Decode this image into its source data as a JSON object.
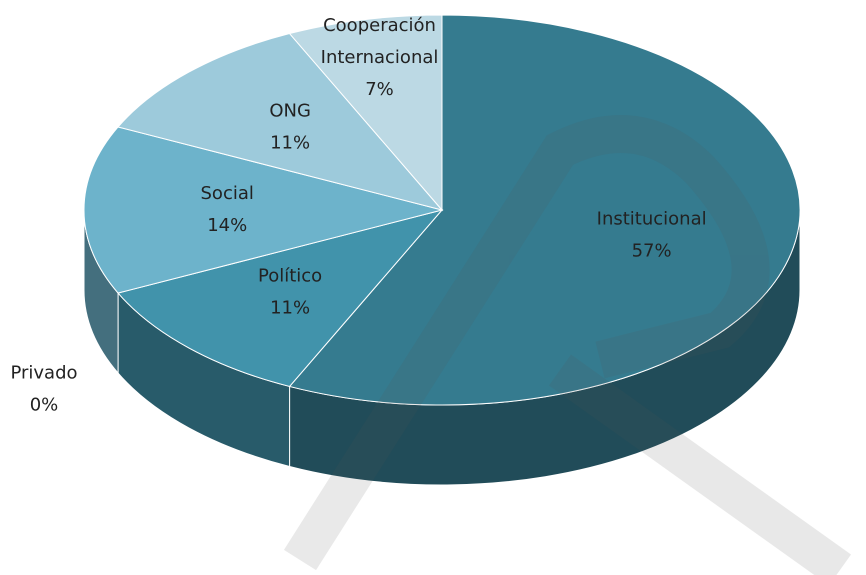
{
  "chart_data": {
    "type": "pie",
    "categories": [
      "Institucional",
      "Privado",
      "Político",
      "Social",
      "ONG",
      "Cooperación Internacional"
    ],
    "values": [
      57,
      0,
      11,
      14,
      11,
      7
    ],
    "value_labels": [
      "57%",
      "0%",
      "11%",
      "14%",
      "11%",
      "7%"
    ],
    "colors": [
      "#357b8f",
      "#3a86a0",
      "#4193ab",
      "#6db3cb",
      "#9dcadb",
      "#bcd9e4"
    ]
  }
}
